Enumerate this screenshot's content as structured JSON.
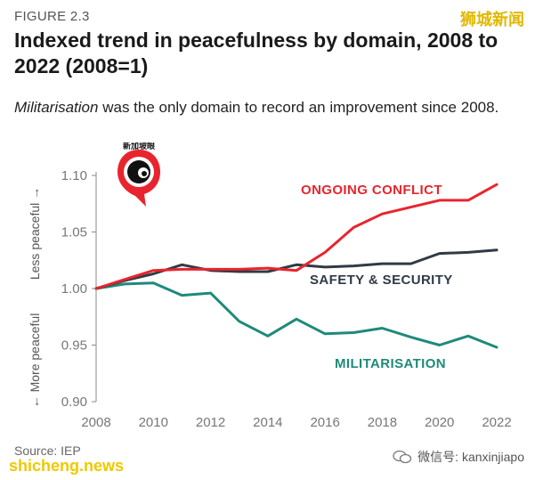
{
  "figure_label": "FIGURE 2.3",
  "title": "Indexed trend in peacefulness by domain, 2008 to 2022 (2008=1)",
  "subtitle_emph": "Militarisation",
  "subtitle_rest": " was the only domain to record an improvement since 2008.",
  "source": "Source: IEP",
  "watermark_top": "狮城新闻",
  "watermark_left": "shicheng.news",
  "watermark_right": "微信号: kanxinjiapo",
  "logo_text": "新加坡眼",
  "colors": {
    "ongoing": "#e8252e",
    "safety": "#2f3b45",
    "militarisation": "#1f8a7a",
    "axis": "#888888"
  },
  "chart_data": {
    "type": "line",
    "title": "Indexed trend in peacefulness by domain, 2008 to 2022 (2008=1)",
    "x": [
      2008,
      2009,
      2010,
      2011,
      2012,
      2013,
      2014,
      2015,
      2016,
      2017,
      2018,
      2019,
      2020,
      2021,
      2022
    ],
    "xticks": [
      "2008",
      "2010",
      "2012",
      "2014",
      "2016",
      "2018",
      "2020",
      "2022"
    ],
    "yticks": [
      "0.90",
      "0.95",
      "1.00",
      "1.05",
      "1.10"
    ],
    "ylim": [
      0.9,
      1.1
    ],
    "ylabel_top": "Less peaceful →",
    "ylabel_bottom": "← More peaceful",
    "series": [
      {
        "name": "ONGOING CONFLICT",
        "key": "ongoing",
        "values": [
          1.0,
          1.008,
          1.016,
          1.017,
          1.017,
          1.017,
          1.018,
          1.016,
          1.032,
          1.054,
          1.066,
          1.072,
          1.078,
          1.078,
          1.092
        ]
      },
      {
        "name": "SAFETY & SECURITY",
        "key": "safety",
        "values": [
          1.0,
          1.007,
          1.013,
          1.021,
          1.016,
          1.015,
          1.015,
          1.021,
          1.019,
          1.02,
          1.022,
          1.022,
          1.031,
          1.032,
          1.034
        ]
      },
      {
        "name": "MILITARISATION",
        "key": "militarisation",
        "values": [
          1.0,
          1.004,
          1.005,
          0.994,
          0.996,
          0.971,
          0.958,
          0.973,
          0.96,
          0.961,
          0.965,
          0.957,
          0.95,
          0.958,
          0.948
        ]
      }
    ]
  }
}
